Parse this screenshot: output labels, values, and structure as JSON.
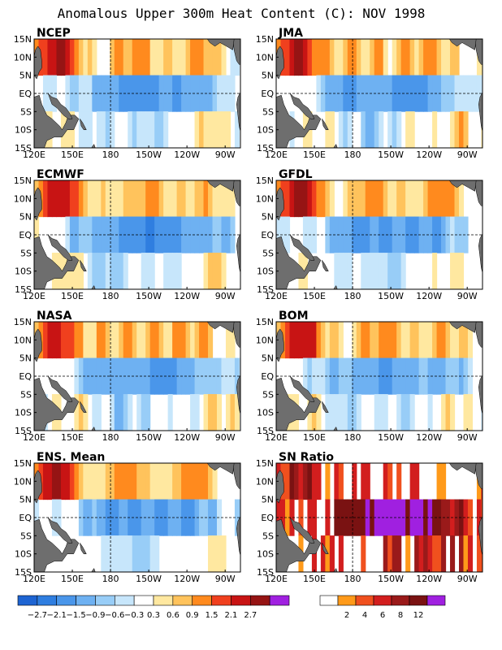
{
  "title": "Anomalous Upper 300m Heat Content (C): NOV 1998",
  "x_ticks": [
    "120E",
    "150E",
    "180",
    "150W",
    "120W",
    "90W"
  ],
  "y_ticks": [
    "15N",
    "10N",
    "5N",
    "EQ",
    "5S",
    "10S",
    "15S"
  ],
  "panels": [
    {
      "name": "NCEP",
      "kind": "anom",
      "warm_west": 1.0,
      "cold_center": 1.0,
      "south_warm": 0.9
    },
    {
      "name": "JMA",
      "kind": "anom",
      "warm_west": 1.05,
      "cold_center": 1.0,
      "south_warm": 1.0
    },
    {
      "name": "ECMWF",
      "kind": "anom",
      "warm_west": 1.0,
      "cold_center": 1.1,
      "south_warm": 0.8
    },
    {
      "name": "GFDL",
      "kind": "anom",
      "warm_west": 1.05,
      "cold_center": 1.0,
      "south_warm": 0.8
    },
    {
      "name": "NASA",
      "kind": "anom",
      "warm_west": 0.95,
      "cold_center": 0.95,
      "south_warm": 0.8
    },
    {
      "name": "BOM",
      "kind": "anom",
      "warm_west": 1.0,
      "cold_center": 0.85,
      "south_warm": 0.6
    },
    {
      "name": "ENS. Mean",
      "kind": "anom",
      "warm_west": 1.0,
      "cold_center": 1.0,
      "south_warm": 0.85
    },
    {
      "name": "SN Ratio",
      "kind": "snr",
      "warm_west": 1.0,
      "cold_center": 1.0,
      "south_warm": 1.0
    }
  ],
  "anom_colorbar": {
    "labels": [
      "-2.7",
      "-2.1",
      "-1.5",
      "-0.9",
      "-0.6",
      "-0.3",
      "0.3",
      "0.6",
      "0.9",
      "1.5",
      "2.1",
      "2.7"
    ],
    "colors": [
      "#1e64d2",
      "#2f7ee0",
      "#4a96ea",
      "#6eb1f2",
      "#98cdf7",
      "#c7e6fb",
      "#ffffff",
      "#ffe8a0",
      "#ffc35c",
      "#ff8a1e",
      "#f0401e",
      "#c81414",
      "#961414",
      "#a020e0"
    ]
  },
  "snr_colorbar": {
    "labels": [
      "2",
      "4",
      "6",
      "8",
      "12"
    ],
    "colors": [
      "#ffffff",
      "#ff9a1a",
      "#f0501e",
      "#d21e1e",
      "#9a1a1a",
      "#7a1212",
      "#a020e0"
    ]
  },
  "land_color": "#6e6e6e"
}
